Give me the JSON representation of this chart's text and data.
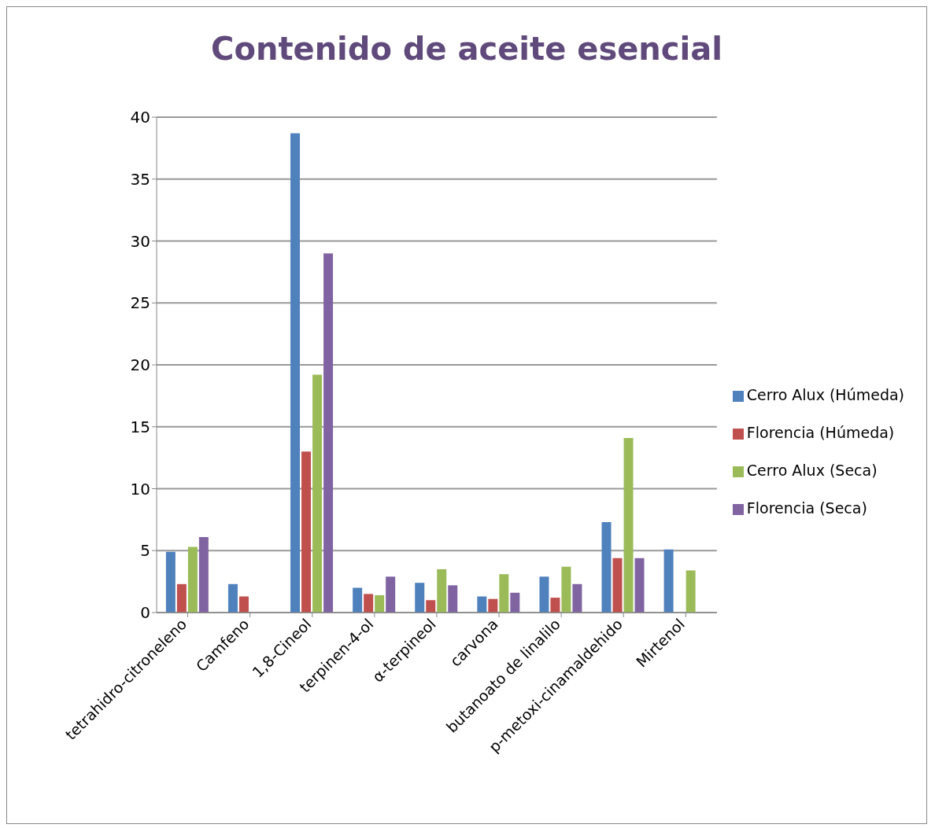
{
  "chart_data": {
    "type": "bar",
    "title": "Contenido de aceite esencial",
    "categories": [
      "tetrahidro-citroneleno",
      "Camfeno",
      "1,8-Cineol",
      "terpinen-4-ol",
      "α-terpineol",
      "carvona",
      "butanoato de linalilo",
      "p-metoxi-cinamaldehido",
      "Mirtenol"
    ],
    "series": [
      {
        "name": "Cerro Alux (Húmeda)",
        "color": "#4f81bd",
        "values": [
          4.9,
          2.3,
          38.7,
          2.0,
          2.4,
          1.3,
          2.9,
          7.3,
          5.1
        ]
      },
      {
        "name": "Florencia (Húmeda)",
        "color": "#c0504d",
        "values": [
          2.3,
          1.3,
          13.0,
          1.5,
          1.0,
          1.1,
          1.2,
          4.4,
          0
        ]
      },
      {
        "name": "Cerro Alux (Seca)",
        "color": "#9bbb59",
        "values": [
          5.3,
          0,
          19.2,
          1.4,
          3.5,
          3.1,
          3.7,
          14.1,
          3.4
        ]
      },
      {
        "name": "Florencia (Seca)",
        "color": "#8064a2",
        "values": [
          6.1,
          0,
          29.0,
          2.9,
          2.2,
          1.6,
          2.3,
          4.4,
          0
        ]
      }
    ],
    "ylim": [
      0,
      40
    ],
    "yticks": [
      0,
      5,
      10,
      15,
      20,
      25,
      30,
      35,
      40
    ],
    "grid": "y",
    "legend": "right"
  }
}
